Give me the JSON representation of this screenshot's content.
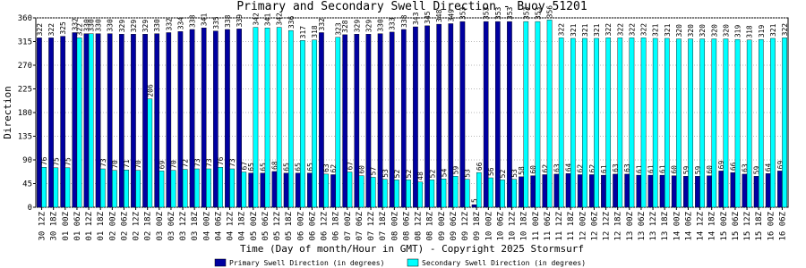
{
  "chart_data": {
    "type": "bar",
    "title": "Primary and Secondary Swell Direction - Buoy 51201",
    "x_label": "Time (Day of month/Hour in GMT) - Copyright 2025 Stormsurf",
    "y_label": "Direction",
    "categories": [
      "30 12Z",
      "30 18Z",
      "01 00Z",
      "01 06Z",
      "01 12Z",
      "01 18Z",
      "02 00Z",
      "02 06Z",
      "02 12Z",
      "02 18Z",
      "03 00Z",
      "03 06Z",
      "03 12Z",
      "03 18Z",
      "04 00Z",
      "04 06Z",
      "04 12Z",
      "04 18Z",
      "05 00Z",
      "05 06Z",
      "05 12Z",
      "05 18Z",
      "06 00Z",
      "06 06Z",
      "06 12Z",
      "06 18Z",
      "07 00Z",
      "07 06Z",
      "07 12Z",
      "07 18Z",
      "08 00Z",
      "08 06Z",
      "08 12Z",
      "08 18Z",
      "09 00Z",
      "09 06Z",
      "09 12Z",
      "09 18Z",
      "10 00Z",
      "10 06Z",
      "10 12Z",
      "10 18Z",
      "11 00Z",
      "11 06Z",
      "11 12Z",
      "11 18Z",
      "12 00Z",
      "12 06Z",
      "12 12Z",
      "12 18Z",
      "13 00Z",
      "13 06Z",
      "13 12Z",
      "13 18Z",
      "14 00Z",
      "14 06Z",
      "14 12Z",
      "14 18Z",
      "15 00Z",
      "15 06Z",
      "15 12Z",
      "15 18Z",
      "16 00Z",
      "16 06Z"
    ],
    "series": [
      {
        "name": "Primary Swell Direction (in degrees)",
        "color": "#0000a0",
        "values": [
          322,
          322,
          325,
          332,
          330,
          330,
          330,
          329,
          329,
          329,
          330,
          332,
          334,
          338,
          341,
          335,
          338,
          339,
          65,
          65,
          68,
          65,
          65,
          65,
          332,
          62,
          328,
          329,
          329,
          330,
          333,
          338,
          343,
          345,
          348,
          349,
          353,
          5,
          353,
          353,
          353,
          58,
          60,
          62,
          63,
          64,
          62,
          62,
          61,
          63,
          63,
          61,
          61,
          61,
          60,
          59,
          59,
          60,
          69,
          66,
          63,
          59,
          64,
          69
        ]
      },
      {
        "name": "Secondary Swell Direction (in degrees)",
        "color": "#00ffff",
        "values": [
          76,
          75,
          75,
          322,
          330,
          73,
          70,
          71,
          70,
          206,
          69,
          70,
          72,
          73,
          73,
          76,
          73,
          67,
          342,
          341,
          342,
          336,
          317,
          318,
          63,
          323,
          67,
          60,
          57,
          53,
          52,
          52,
          48,
          52,
          54,
          59,
          53,
          66,
          56,
          52,
          53,
          353,
          353,
          356,
          322,
          321,
          321,
          321,
          322,
          322,
          322,
          322,
          321,
          321,
          320,
          320,
          320,
          320,
          320,
          319,
          318,
          319,
          321,
          322
        ]
      }
    ],
    "ylim": [
      0,
      360
    ],
    "yticks": [
      0,
      45,
      90,
      135,
      180,
      225,
      270,
      315,
      360
    ],
    "grid": true
  }
}
